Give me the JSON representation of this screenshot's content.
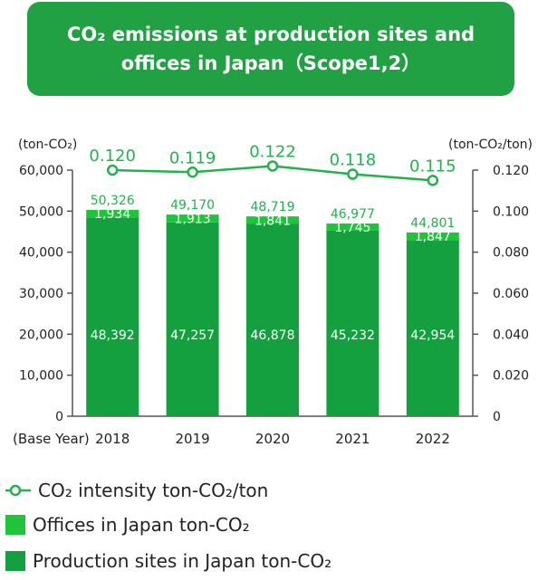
{
  "title": {
    "line1": "CO₂ emissions at production sites and",
    "line2": "offices in Japan（Scope1,2）"
  },
  "chart_data": {
    "type": "bar",
    "stacked": true,
    "categories": [
      "2018",
      "2019",
      "2020",
      "2021",
      "2022"
    ],
    "base_year_label": "(Base Year)",
    "series": [
      {
        "name": "Production sites in Japan ton-CO₂",
        "values": [
          48392,
          47257,
          46878,
          45232,
          42954
        ],
        "labels": [
          "48,392",
          "47,257",
          "46,878",
          "45,232",
          "42,954"
        ]
      },
      {
        "name": "Offices in Japan ton-CO₂",
        "values": [
          1934,
          1913,
          1841,
          1745,
          1847
        ],
        "labels": [
          "1,934",
          "1,913",
          "1,841",
          "1,745",
          "1,847"
        ]
      }
    ],
    "totals": [
      "50,326",
      "49,170",
      "48,719",
      "46,977",
      "44,801"
    ],
    "line_series": {
      "name": "CO₂ intensity ton-CO₂/ton",
      "values": [
        0.12,
        0.119,
        0.122,
        0.118,
        0.115
      ],
      "labels": [
        "0.120",
        "0.119",
        "0.122",
        "0.118",
        "0.115"
      ],
      "axis": "right"
    },
    "y_left": {
      "unit": "(ton-CO₂)",
      "min": 0,
      "max": 60000,
      "ticks": [
        "0",
        "10,000",
        "20,000",
        "30,000",
        "40,000",
        "50,000",
        "60,000"
      ]
    },
    "y_right": {
      "unit": "(ton-CO₂/ton)",
      "min": 0,
      "max": 0.12,
      "ticks": [
        "0",
        "0.020",
        "0.040",
        "0.060",
        "0.080",
        "0.100",
        "0.120"
      ]
    },
    "colors": {
      "production": "#15a040",
      "offices": "#1fc43b",
      "line": "#22b14c",
      "title_bg": "#21a144"
    }
  },
  "legend": [
    {
      "label": "CO₂ intensity ton-CO₂/ton"
    },
    {
      "label": "Offices in Japan ton-CO₂"
    },
    {
      "label": "Production sites in Japan ton-CO₂"
    }
  ]
}
